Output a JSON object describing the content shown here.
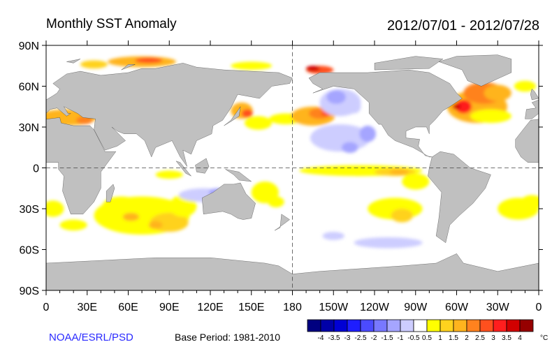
{
  "title": "Monthly SST Anomaly",
  "date_range": "2012/07/01 - 2012/07/28",
  "credit": "NOAA/ESRL/PSD",
  "base_period": "Base Period: 1981-2010",
  "lat_labels": [
    "90N",
    "60N",
    "30N",
    "0",
    "30S",
    "60S",
    "90S"
  ],
  "lon_labels": [
    "0",
    "30E",
    "60E",
    "90E",
    "120E",
    "150E",
    "180",
    "150W",
    "120W",
    "90W",
    "60W",
    "30W",
    "0"
  ],
  "colorbar": {
    "unit": "°C",
    "labels": [
      "-4",
      "-3.5",
      "-3",
      "-2.5",
      "-2",
      "-1.5",
      "-1",
      "-0.5",
      "0.5",
      "1",
      "1.5",
      "2",
      "2.5",
      "3",
      "3.5",
      "4"
    ],
    "colors": [
      "#000080",
      "#0000a8",
      "#0000d4",
      "#1e1eff",
      "#4b4bff",
      "#7878ff",
      "#a5a5ff",
      "#cdcdff",
      "#ffffff",
      "#ffff00",
      "#ffd21e",
      "#ffb41e",
      "#ff821e",
      "#ff501e",
      "#ff1e1e",
      "#d20000",
      "#960000"
    ]
  },
  "land_color": "#c0c0c0"
}
